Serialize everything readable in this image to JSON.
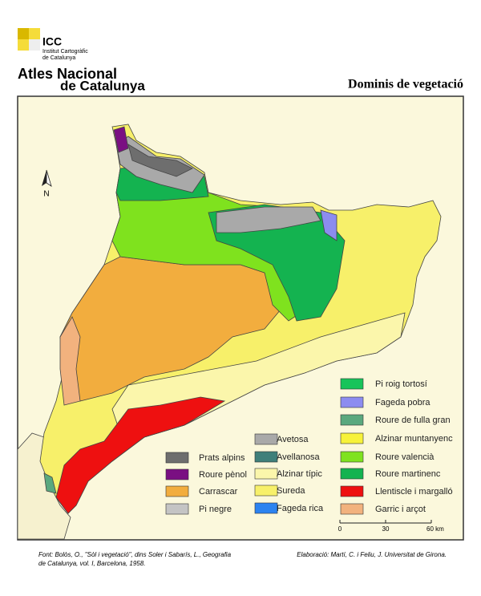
{
  "header": {
    "logo": "ICC",
    "institute": [
      "Institut Cartogràfic",
      "de Catalunya"
    ],
    "atlas": [
      "Atles Nacional",
      "de Catalunya"
    ],
    "title": "Dominis de vegetació"
  },
  "north": "N",
  "legend": {
    "items": [
      {
        "label": "Prats alpins",
        "color": "#6e6e6e"
      },
      {
        "label": "Roure pènol",
        "color": "#7a0f82"
      },
      {
        "label": "Carrascar",
        "color": "#f2ad3e"
      },
      {
        "label": "Pi negre",
        "color": "#c4c4c4"
      },
      {
        "label": "Avetosa",
        "color": "#a9a9a9"
      },
      {
        "label": "Avellanosa",
        "color": "#3f7f7a"
      },
      {
        "label": "Alzinar típic",
        "color": "#fbf6ab"
      },
      {
        "label": "Sureda",
        "color": "#f7f06a"
      },
      {
        "label": "Fageda rica",
        "color": "#2c83f0"
      },
      {
        "label": "Pi roig tortosí",
        "color": "#17c45a"
      },
      {
        "label": "Fageda pobra",
        "color": "#8c8cf0"
      },
      {
        "label": "Roure de fulla gran",
        "color": "#5aa87e"
      },
      {
        "label": "Alzinar muntanyenc",
        "color": "#f7f23a"
      },
      {
        "label": "Roure valencià",
        "color": "#7fe21e"
      },
      {
        "label": "Roure martinenc",
        "color": "#14b350"
      },
      {
        "label": "Llentiscle i margalló",
        "color": "#ee1010"
      },
      {
        "label": "Garric i arçot",
        "color": "#f2b27e"
      }
    ]
  },
  "scale": {
    "labels": [
      "0",
      "30",
      "60 km"
    ]
  },
  "footer": {
    "source": [
      "Font: Bolòs, O., \"Sòl i vegetació\", dins Soler i Sabarís, L., Geografia",
      "de Catalunya, vol. I, Barcelona, 1958."
    ],
    "credit": "Elaboració: Martí, C. i Feliu, J. Universitat de Girona."
  }
}
